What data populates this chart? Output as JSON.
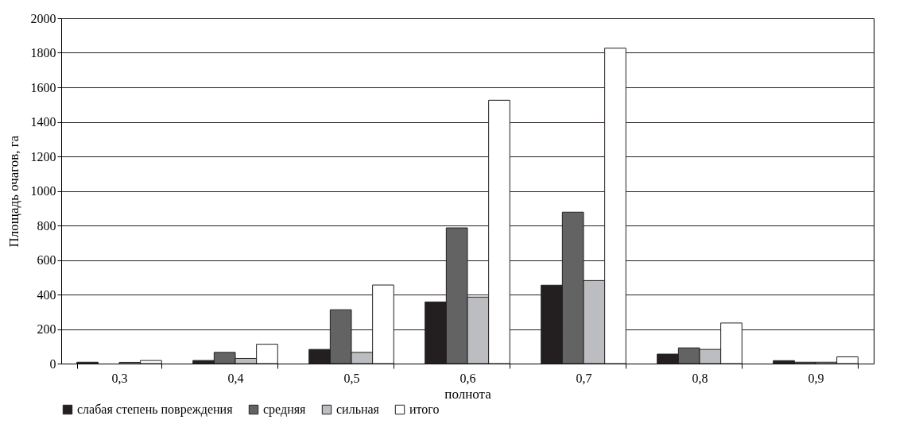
{
  "chart_data": {
    "type": "bar",
    "xlabel": "полнота",
    "ylabel": "Площадь очагов, га",
    "categories": [
      "0,3",
      "0,4",
      "0,5",
      "0,6",
      "0,7",
      "0,8",
      "0,9"
    ],
    "series": [
      {
        "name": "слабая степень повреждения",
        "color": "#231f20",
        "values": [
          8,
          18,
          82,
          357,
          454,
          55,
          17
        ]
      },
      {
        "name": "средняя",
        "color": "#636363",
        "values": [
          null,
          65,
          312,
          786,
          877,
          91,
          8
        ]
      },
      {
        "name": "сильная",
        "color": "#bcbdc0",
        "values": [
          7,
          30,
          65,
          385,
          481,
          82,
          8
        ]
      },
      {
        "name": "итого",
        "color": "#ffffff",
        "values": [
          18,
          112,
          455,
          1525,
          1827,
          235,
          39
        ]
      }
    ],
    "ylim": [
      0,
      2000
    ],
    "yticks": [
      0,
      200,
      400,
      600,
      800,
      1000,
      1200,
      1400,
      1600,
      1800,
      2000
    ],
    "grid": "y",
    "legend": "bottom"
  }
}
